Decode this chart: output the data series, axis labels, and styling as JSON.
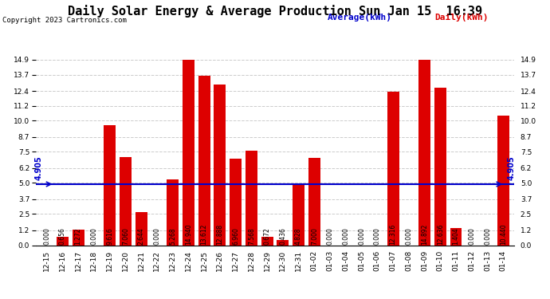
{
  "title": "Daily Solar Energy & Average Production Sun Jan 15  16:39",
  "copyright": "Copyright 2023 Cartronics.com",
  "legend_avg": "Average(kWh)",
  "legend_daily": "Daily(kWh)",
  "average_value": 4.905,
  "categories": [
    "12-15",
    "12-16",
    "12-17",
    "12-18",
    "12-19",
    "12-20",
    "12-21",
    "12-22",
    "12-23",
    "12-24",
    "12-25",
    "12-26",
    "12-27",
    "12-28",
    "12-29",
    "12-30",
    "12-31",
    "01-02",
    "01-03",
    "01-04",
    "01-05",
    "01-06",
    "01-07",
    "01-08",
    "01-09",
    "01-10",
    "01-11",
    "01-12",
    "01-13",
    "01-14"
  ],
  "values": [
    0.0,
    0.656,
    1.272,
    0.0,
    9.616,
    7.06,
    2.644,
    0.0,
    5.268,
    14.94,
    13.612,
    12.888,
    6.96,
    7.568,
    0.672,
    0.436,
    4.828,
    7.0,
    0.0,
    0.0,
    0.0,
    0.0,
    12.316,
    0.0,
    14.892,
    12.636,
    1.404,
    0.0,
    0.0,
    10.44
  ],
  "bar_color": "#dd0000",
  "avg_line_color": "#0000cc",
  "avg_label_color": "#0000cc",
  "title_color": "#000000",
  "copyright_color": "#000000",
  "legend_avg_color": "#0000cc",
  "legend_daily_color": "#dd0000",
  "ylim": [
    0.0,
    14.9
  ],
  "yticks": [
    0.0,
    1.2,
    2.5,
    3.7,
    5.0,
    6.2,
    7.5,
    8.7,
    10.0,
    11.2,
    12.4,
    13.7,
    14.9
  ],
  "background_color": "#ffffff",
  "grid_color": "#cccccc",
  "title_fontsize": 11,
  "copyright_fontsize": 6.5,
  "bar_value_fontsize": 5.5,
  "tick_fontsize": 6.5,
  "avg_fontsize": 7,
  "legend_fontsize": 8
}
